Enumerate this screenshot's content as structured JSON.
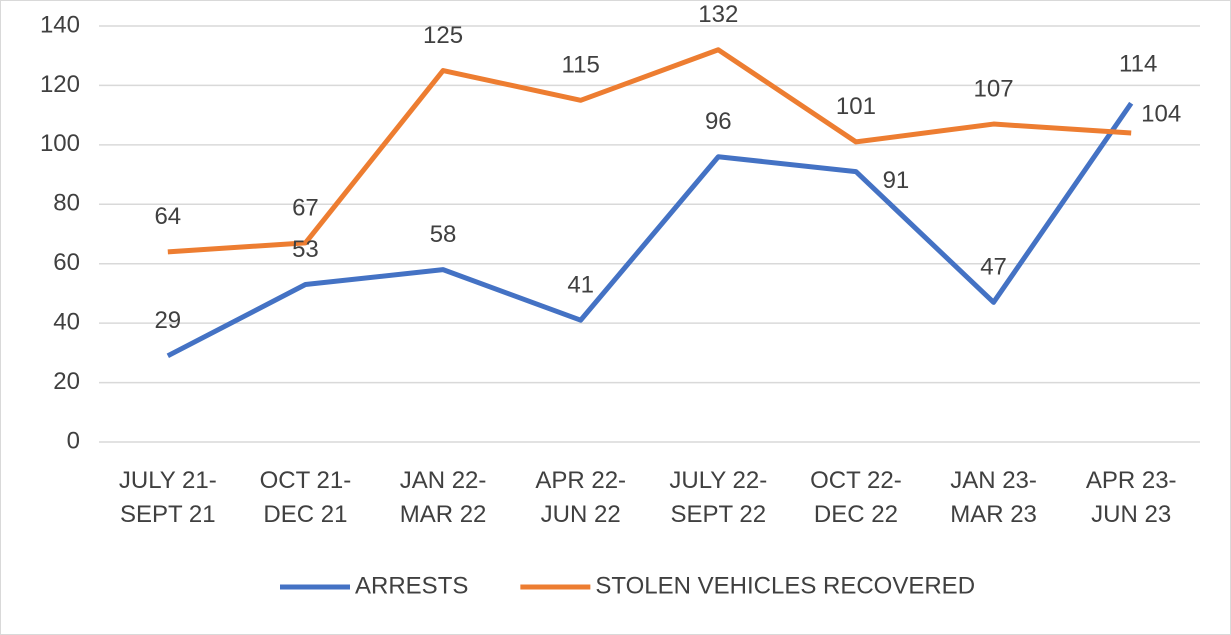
{
  "chart_data": {
    "type": "line",
    "categories": [
      "JULY 21-\nSEPT 21",
      "OCT 21-\nDEC 21",
      "JAN 22-\nMAR 22",
      "APR 22-\nJUN 22",
      "JULY 22-\nSEPT 22",
      "OCT 22-\nDEC 22",
      "JAN 23-\nMAR 23",
      "APR 23-\nJUN 23"
    ],
    "series": [
      {
        "name": "ARRESTS",
        "color": "#4472c4",
        "values": [
          29,
          53,
          58,
          41,
          96,
          91,
          47,
          114
        ]
      },
      {
        "name": "STOLEN VEHICLES RECOVERED",
        "color": "#ed7d31",
        "values": [
          64,
          67,
          125,
          115,
          132,
          101,
          107,
          104
        ]
      }
    ],
    "ylim": [
      0,
      140
    ],
    "yticks": [
      0,
      20,
      40,
      60,
      80,
      100,
      120,
      140
    ],
    "grid": true,
    "legend": "bottom"
  }
}
